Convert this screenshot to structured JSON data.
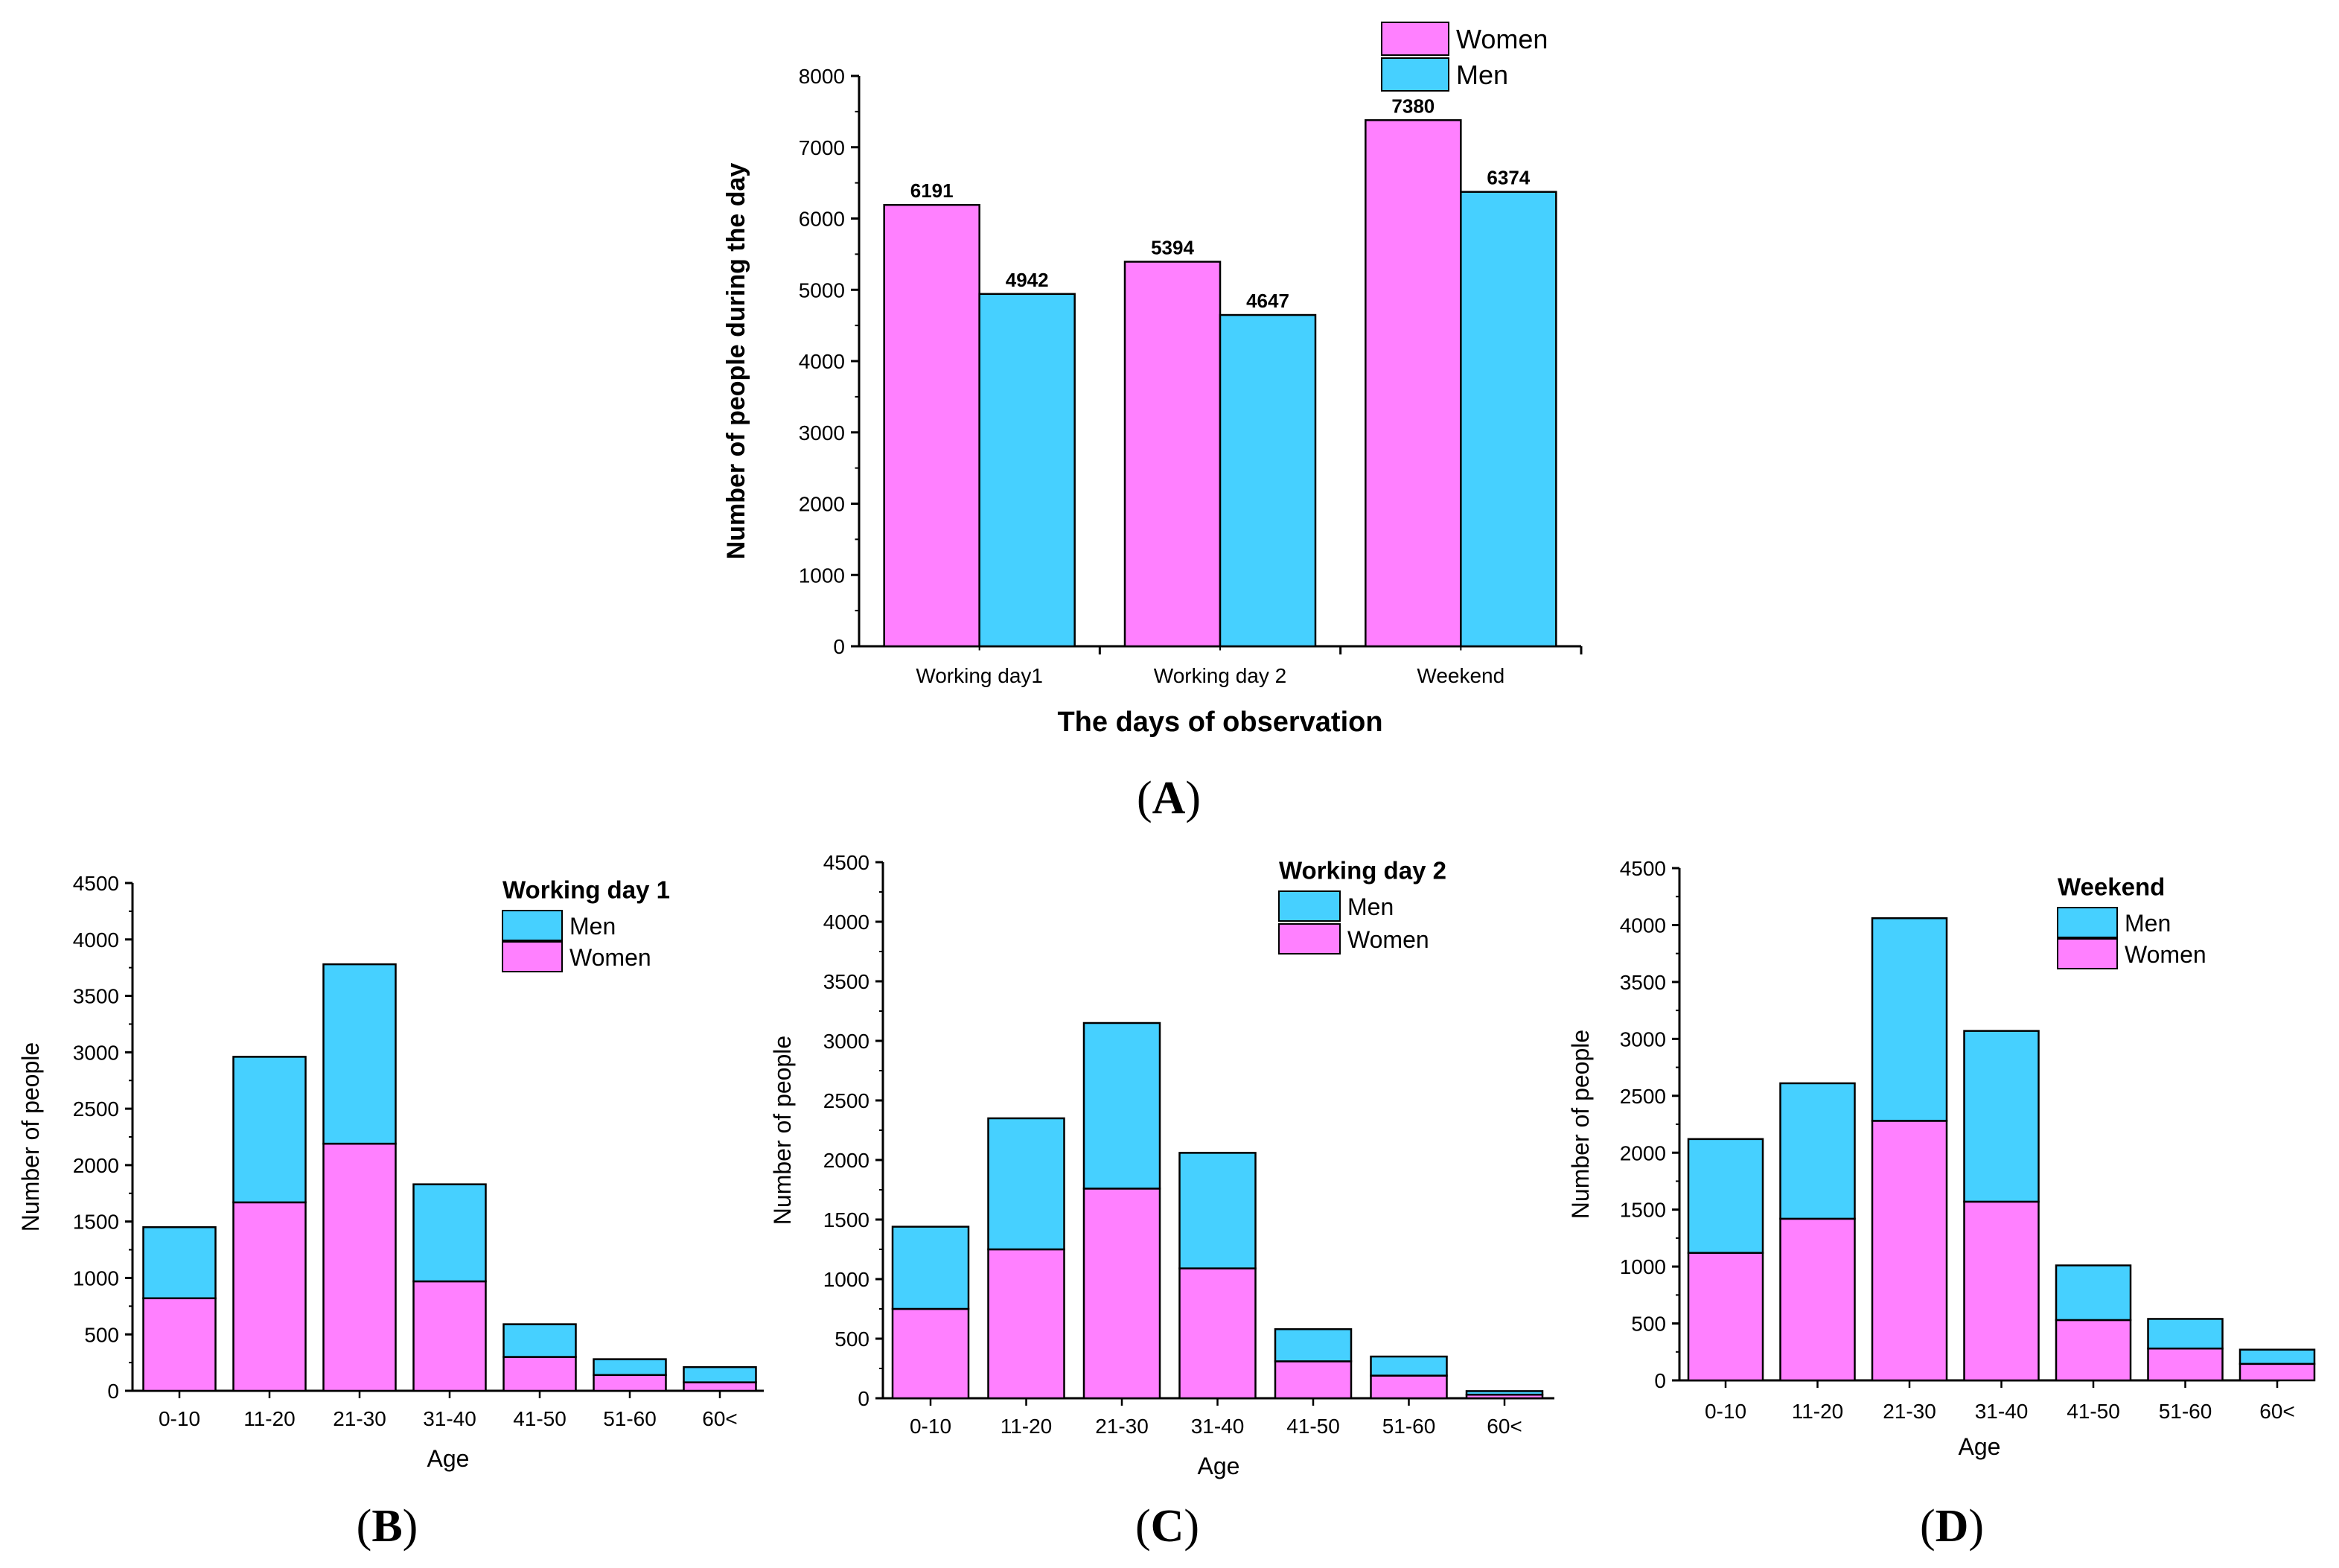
{
  "colors": {
    "women": "#ff80ff",
    "men": "#46d0ff",
    "axis": "#000000"
  },
  "chart_data": [
    {
      "id": "A",
      "panel_label": "A",
      "type": "bar",
      "title": "",
      "xlabel": "The days of observation",
      "ylabel": "Number of people during the day",
      "categories": [
        "Working day1",
        "Working day 2",
        "Weekend"
      ],
      "series": [
        {
          "name": "Women",
          "values": [
            6191,
            5394,
            7380
          ]
        },
        {
          "name": "Men",
          "values": [
            4942,
            4647,
            6374
          ]
        }
      ],
      "data_labels": [
        [
          "6191",
          "5394",
          "7380"
        ],
        [
          "4942",
          "4647",
          "6374"
        ]
      ],
      "ylim": [
        0,
        8000
      ],
      "yticks": [
        "0",
        "1000",
        "2000",
        "3000",
        "4000",
        "5000",
        "6000",
        "7000",
        "8000"
      ],
      "legend": {
        "placement": "top-right",
        "title": "",
        "entries": [
          "Women",
          "Men"
        ]
      },
      "grid": false
    },
    {
      "id": "B",
      "panel_label": "B",
      "type": "bar",
      "stacked": true,
      "title": "",
      "xlabel": "Age",
      "ylabel": "Number of people",
      "categories": [
        "0-10",
        "11-20",
        "21-30",
        "31-40",
        "41-50",
        "51-60",
        "60<"
      ],
      "series": [
        {
          "name": "Women",
          "values": [
            820,
            1670,
            2190,
            970,
            300,
            140,
            75
          ]
        },
        {
          "name": "Men",
          "values": [
            630,
            1290,
            1590,
            860,
            290,
            140,
            135
          ]
        }
      ],
      "ylim": [
        0,
        4500
      ],
      "yticks": [
        "0",
        "500",
        "1000",
        "1500",
        "2000",
        "2500",
        "3000",
        "3500",
        "4000",
        "4500"
      ],
      "legend": {
        "placement": "top-right",
        "title": "Working day 1",
        "entries": [
          "Men",
          "Women"
        ]
      },
      "grid": false
    },
    {
      "id": "C",
      "panel_label": "C",
      "type": "bar",
      "stacked": true,
      "title": "",
      "xlabel": "Age",
      "ylabel": "Number of people",
      "categories": [
        "0-10",
        "11-20",
        "21-30",
        "31-40",
        "41-50",
        "51-60",
        "60<"
      ],
      "series": [
        {
          "name": "Women",
          "values": [
            750,
            1250,
            1760,
            1090,
            310,
            190,
            30
          ]
        },
        {
          "name": "Men",
          "values": [
            690,
            1100,
            1390,
            970,
            270,
            160,
            30
          ]
        }
      ],
      "ylim": [
        0,
        4500
      ],
      "yticks": [
        "0",
        "500",
        "1000",
        "1500",
        "2000",
        "2500",
        "3000",
        "3500",
        "4000",
        "4500"
      ],
      "legend": {
        "placement": "top-right",
        "title": "Working day 2",
        "entries": [
          "Men",
          "Women"
        ]
      },
      "grid": false
    },
    {
      "id": "D",
      "panel_label": "D",
      "type": "bar",
      "stacked": true,
      "title": "",
      "xlabel": "Age",
      "ylabel": "Number of people",
      "categories": [
        "0-10",
        "11-20",
        "21-30",
        "31-40",
        "41-50",
        "51-60",
        "60<"
      ],
      "series": [
        {
          "name": "Women",
          "values": [
            1120,
            1420,
            2280,
            1570,
            530,
            280,
            145
          ]
        },
        {
          "name": "Men",
          "values": [
            1000,
            1190,
            1780,
            1500,
            480,
            260,
            125
          ]
        }
      ],
      "ylim": [
        0,
        4500
      ],
      "yticks": [
        "0",
        "500",
        "1000",
        "1500",
        "2000",
        "2500",
        "3000",
        "3500",
        "4000",
        "4500"
      ],
      "legend": {
        "placement": "top-right",
        "title": "Weekend",
        "entries": [
          "Men",
          "Women"
        ]
      },
      "grid": false
    }
  ]
}
